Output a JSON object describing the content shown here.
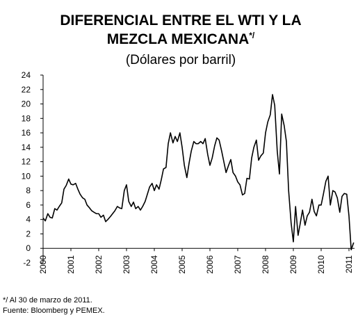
{
  "chart_data": {
    "type": "line",
    "title": [
      "DIFERENCIAL ENTRE EL WTI Y LA",
      "MEZCLA MEXICANA"
    ],
    "title_note": "*/",
    "subtitle": "(Dólares por barril)",
    "footnotes": [
      "*/ Al 30 de marzo de 2011.",
      "Fuente: Bloomberg y PEMEX."
    ],
    "xlim": [
      2000,
      2011.2
    ],
    "xticks": [
      2000,
      2001,
      2002,
      2003,
      2004,
      2005,
      2006,
      2007,
      2008,
      2009,
      2010,
      2011
    ],
    "ylim": [
      -2,
      24
    ],
    "yticks": [
      -2,
      0,
      2,
      4,
      6,
      8,
      10,
      12,
      14,
      16,
      18,
      20,
      22,
      24
    ],
    "grid": false,
    "series": [
      {
        "name": "Diferencial",
        "color": "#000000",
        "x": [
          2000,
          2000.08,
          2000.17,
          2000.25,
          2000.33,
          2000.42,
          2000.5,
          2000.58,
          2000.67,
          2000.75,
          2000.83,
          2000.92,
          2001,
          2001.08,
          2001.17,
          2001.25,
          2001.33,
          2001.42,
          2001.5,
          2001.58,
          2001.67,
          2001.75,
          2001.83,
          2001.92,
          2002,
          2002.08,
          2002.17,
          2002.25,
          2002.33,
          2002.42,
          2002.5,
          2002.58,
          2002.67,
          2002.75,
          2002.83,
          2002.92,
          2003,
          2003.08,
          2003.17,
          2003.25,
          2003.33,
          2003.42,
          2003.5,
          2003.58,
          2003.67,
          2003.75,
          2003.83,
          2003.92,
          2004,
          2004.08,
          2004.17,
          2004.25,
          2004.33,
          2004.42,
          2004.5,
          2004.58,
          2004.67,
          2004.75,
          2004.83,
          2004.92,
          2005,
          2005.08,
          2005.17,
          2005.25,
          2005.33,
          2005.42,
          2005.5,
          2005.58,
          2005.67,
          2005.75,
          2005.83,
          2005.92,
          2006,
          2006.08,
          2006.17,
          2006.25,
          2006.33,
          2006.42,
          2006.5,
          2006.58,
          2006.67,
          2006.75,
          2006.83,
          2006.92,
          2007,
          2007.08,
          2007.17,
          2007.25,
          2007.33,
          2007.42,
          2007.5,
          2007.58,
          2007.67,
          2007.75,
          2007.83,
          2007.92,
          2008,
          2008.08,
          2008.17,
          2008.25,
          2008.33,
          2008.42,
          2008.5,
          2008.58,
          2008.67,
          2008.75,
          2008.83,
          2008.92,
          2009,
          2009.08,
          2009.17,
          2009.25,
          2009.33,
          2009.42,
          2009.5,
          2009.58,
          2009.67,
          2009.75,
          2009.83,
          2009.92,
          2010,
          2010.08,
          2010.17,
          2010.25,
          2010.33,
          2010.42,
          2010.5,
          2010.58,
          2010.67,
          2010.75,
          2010.83,
          2010.92,
          2011,
          2011.08,
          2011.17
        ],
        "values": [
          4.2,
          3.8,
          4.8,
          4.3,
          4.2,
          5.5,
          5.3,
          5.8,
          6.3,
          8.2,
          8.7,
          9.6,
          8.9,
          8.8,
          9.0,
          8.2,
          7.5,
          7.0,
          6.8,
          6.0,
          5.6,
          5.2,
          5.0,
          4.8,
          4.8,
          4.3,
          4.6,
          3.7,
          4.0,
          4.4,
          4.8,
          5.2,
          5.8,
          5.6,
          5.5,
          8.0,
          8.8,
          6.5,
          5.8,
          6.4,
          5.5,
          5.8,
          5.3,
          5.8,
          6.5,
          7.5,
          8.5,
          9.0,
          8.0,
          8.8,
          8.2,
          9.5,
          11.0,
          11.2,
          14.5,
          16.0,
          14.6,
          15.5,
          14.8,
          16.0,
          14.0,
          11.5,
          9.8,
          11.8,
          13.5,
          14.8,
          14.5,
          14.5,
          14.8,
          14.5,
          15.2,
          13.0,
          11.5,
          12.5,
          14.2,
          15.3,
          15.0,
          13.5,
          12.0,
          10.5,
          11.5,
          12.3,
          10.5,
          10.0,
          9.2,
          8.8,
          7.4,
          7.6,
          9.7,
          9.6,
          12.5,
          14.0,
          15.0,
          12.2,
          12.8,
          13.2,
          16.0,
          17.5,
          18.5,
          21.3,
          19.8,
          13.5,
          10.3,
          18.6,
          17.0,
          14.8,
          8.0,
          3.5,
          0.9,
          5.8,
          1.8,
          3.5,
          5.3,
          3.2,
          4.5,
          5.0,
          6.8,
          5.1,
          4.5,
          6.0,
          6.0,
          7.5,
          9.3,
          10.0,
          6.0,
          8.0,
          7.8,
          7.0,
          5.0,
          7.2,
          7.6,
          7.5,
          4.5,
          -0.2,
          0.8
        ]
      }
    ]
  }
}
